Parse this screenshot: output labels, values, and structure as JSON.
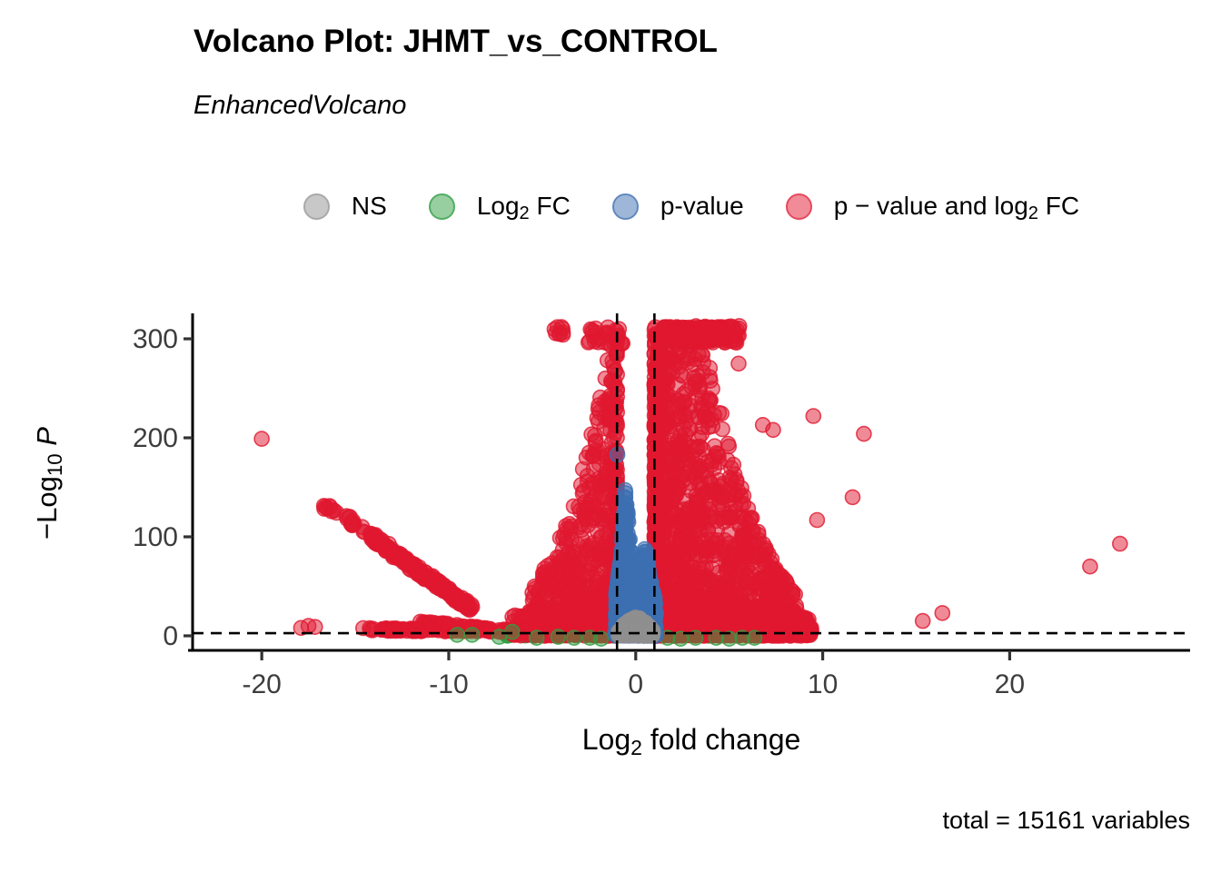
{
  "title": "Volcano Plot: JHMT_vs_CONTROL",
  "subtitle": "EnhancedVolcano",
  "caption": "total = 15161 variables",
  "legend": {
    "items": [
      {
        "key": "ns",
        "pre": "NS",
        "sub": "",
        "post": "",
        "fill": "#c8c8c8",
        "stroke": "#a9a9a9"
      },
      {
        "key": "log2fc",
        "pre": "Log",
        "sub": "2",
        "post": " FC",
        "fill": "#97cfa0",
        "stroke": "#51ae63"
      },
      {
        "key": "pvalue",
        "pre": "p-value",
        "sub": "",
        "post": "",
        "fill": "#9eb7d9",
        "stroke": "#6289bf"
      },
      {
        "key": "both",
        "pre": "p − value and log",
        "sub": "2",
        "post": " FC",
        "fill": "#f08b97",
        "stroke": "#e64a5d"
      }
    ]
  },
  "axes": {
    "y": {
      "pre": "−Log",
      "sub": "10",
      "post": " ",
      "italic_suffix": "P",
      "ticks": [
        0,
        100,
        200,
        300
      ]
    },
    "x": {
      "pre": "Log",
      "sub": "2",
      "post": " fold change",
      "ticks": [
        -20,
        -10,
        0,
        10,
        20
      ]
    }
  },
  "style": {
    "axis_color": "#000000",
    "tick_label_color": "#3d3d3d",
    "dash_color": "#000000"
  },
  "chart_data": {
    "type": "scatter",
    "title": "Volcano Plot: JHMT_vs_CONTROL",
    "subtitle": "EnhancedVolcano",
    "xlabel": "Log2 fold change",
    "ylabel": "-Log10 P",
    "xlim": [
      -23.7,
      29.65
    ],
    "ylim": [
      -14.7,
      325.7
    ],
    "x_ticks": [
      -20,
      -10,
      0,
      10,
      20
    ],
    "y_ticks": [
      0,
      100,
      200,
      300
    ],
    "grid": false,
    "legend_position": "top",
    "total_variables": 15161,
    "point_radius_px": 8,
    "fill_opacity": 0.5,
    "stroke_opacity": 0.8,
    "thresholds": {
      "log2fc_cutoffs": [
        -1,
        1
      ],
      "pvalue_cutoff_neglog10": 2.7
    },
    "colors": {
      "ns": "#8f8f8f",
      "log2fc": "#2f9e41",
      "pvalue": "#3c6fb2",
      "both": "#e0182f"
    },
    "clusters": [
      {
        "name": "green-base",
        "color": "log2fc",
        "type": "band",
        "n": 150,
        "x_range": [
          -7,
          6.5
        ],
        "y_range": [
          0,
          3
        ]
      },
      {
        "name": "red-right-wing",
        "color": "both",
        "type": "wedge",
        "n": 1500,
        "x_range": [
          1.0,
          8.6
        ],
        "x_power": 2.0,
        "envelope": [
          [
            1,
            312
          ],
          [
            3.3,
            310
          ],
          [
            4.2,
            265
          ],
          [
            5,
            190
          ],
          [
            5.8,
            140
          ],
          [
            6.6,
            105
          ],
          [
            7.5,
            68
          ],
          [
            8.6,
            42
          ]
        ],
        "y_power": 1.5
      },
      {
        "name": "red-right-bottom",
        "color": "both",
        "type": "wedge",
        "n": 650,
        "x_range": [
          1.0,
          9.4
        ],
        "x_power": 1.3,
        "envelope": [
          [
            1,
            45
          ],
          [
            5,
            35
          ],
          [
            8,
            25
          ],
          [
            9.4,
            16
          ]
        ],
        "y_power": 1.2
      },
      {
        "name": "red-left-wing",
        "color": "both",
        "type": "wedge",
        "n": 650,
        "x_range": [
          -5.6,
          -1.0
        ],
        "x_power": 2.0,
        "bias_end": true,
        "envelope": [
          [
            -5.6,
            50
          ],
          [
            -4.5,
            80
          ],
          [
            -3.5,
            125
          ],
          [
            -2.6,
            185
          ],
          [
            -1.8,
            250
          ],
          [
            -1.3,
            300
          ],
          [
            -1,
            312
          ]
        ],
        "y_power": 1.6
      },
      {
        "name": "red-left-bottom",
        "color": "both",
        "type": "wedge",
        "n": 300,
        "x_range": [
          -6.6,
          -1.0
        ],
        "x_power": 1.4,
        "bias_end": true,
        "envelope": [
          [
            -6.6,
            20
          ],
          [
            -4,
            35
          ],
          [
            -1,
            45
          ]
        ],
        "y_power": 1.2
      },
      {
        "name": "red-top-band",
        "color": "both",
        "type": "band",
        "n": 150,
        "x_range": [
          1.35,
          5.6
        ],
        "y_range": [
          296,
          313
        ],
        "x_power": 1.6
      },
      {
        "name": "red-top-core",
        "color": "both",
        "type": "band",
        "n": 140,
        "x_range": [
          1.9,
          4.6
        ],
        "y_range": [
          299,
          312
        ]
      },
      {
        "name": "red-top-left",
        "color": "both",
        "type": "band",
        "n": 26,
        "x_range": [
          -2.55,
          -0.7
        ],
        "y_range": [
          295,
          312
        ]
      },
      {
        "name": "red-top-left-mini",
        "color": "both",
        "type": "band",
        "n": 9,
        "x_range": [
          -4.35,
          -3.85
        ],
        "y_range": [
          300,
          312
        ]
      },
      {
        "name": "red-diag-streak",
        "color": "both",
        "type": "line",
        "n": 240,
        "from": [
          -14.2,
          101
        ],
        "to": [
          -8.75,
          27
        ],
        "jitter": [
          0.14,
          3.5
        ]
      },
      {
        "name": "red-diag-pre",
        "color": "both",
        "type": "line",
        "n": 26,
        "from": [
          -16.6,
          131
        ],
        "to": [
          -14.25,
          103
        ],
        "jitter": [
          0.18,
          4
        ]
      },
      {
        "name": "red-bottom-chain",
        "color": "both",
        "type": "line",
        "n": 110,
        "from": [
          -14.4,
          6.5
        ],
        "to": [
          -5.2,
          5
        ],
        "jitter": [
          0.3,
          1.4
        ]
      },
      {
        "name": "red-bottom-slope",
        "color": "both",
        "type": "line",
        "n": 55,
        "from": [
          -11.3,
          13
        ],
        "to": [
          -7.6,
          6
        ],
        "jitter": [
          0.25,
          1.5
        ]
      },
      {
        "name": "red-far-left",
        "color": "both",
        "type": "points",
        "pts": [
          [
            -20.0,
            199
          ],
          [
            -17.9,
            8
          ],
          [
            -17.5,
            10
          ],
          [
            -17.15,
            9
          ],
          [
            -14.05,
            7
          ],
          [
            -13.6,
            6
          ]
        ]
      },
      {
        "name": "red-right-outliers",
        "color": "both",
        "type": "points",
        "pts": [
          [
            5.5,
            275
          ],
          [
            6.8,
            213
          ],
          [
            7.35,
            208
          ],
          [
            9.5,
            222
          ],
          [
            12.2,
            204
          ],
          [
            11.6,
            140
          ],
          [
            9.7,
            117
          ],
          [
            15.35,
            15
          ],
          [
            16.4,
            23
          ],
          [
            24.3,
            70
          ],
          [
            25.9,
            93
          ]
        ]
      },
      {
        "name": "green-peeks",
        "color": "log2fc",
        "type": "points",
        "pts": [
          [
            -9.55,
            1
          ],
          [
            -8.75,
            1
          ],
          [
            -6.6,
            4
          ],
          [
            -7.3,
            -1
          ],
          [
            -5.3,
            -2
          ],
          [
            -4.15,
            -1
          ],
          [
            -3.3,
            -2
          ],
          [
            -2.45,
            -2
          ],
          [
            -1.85,
            -3
          ],
          [
            1.7,
            -2
          ],
          [
            2.4,
            -3
          ],
          [
            3.2,
            -2
          ],
          [
            4.3,
            -2
          ],
          [
            5.0,
            -3
          ],
          [
            5.7,
            -2
          ],
          [
            6.35,
            -2
          ]
        ]
      },
      {
        "name": "blue-left-peak",
        "color": "pvalue",
        "type": "wedge",
        "n": 430,
        "x_range": [
          -1.06,
          -0.05
        ],
        "envelope": [
          [
            -1.06,
            45
          ],
          [
            -0.8,
            80
          ],
          [
            -0.55,
            152
          ],
          [
            -0.3,
            95
          ],
          [
            -0.05,
            40
          ]
        ],
        "y_power": 1.25
      },
      {
        "name": "blue-right-peak",
        "color": "pvalue",
        "type": "wedge",
        "n": 330,
        "x_range": [
          -0.02,
          1.06
        ],
        "envelope": [
          [
            -0.02,
            40
          ],
          [
            0.3,
            78
          ],
          [
            0.5,
            96
          ],
          [
            0.75,
            62
          ],
          [
            1.06,
            35
          ]
        ],
        "y_power": 1.25
      },
      {
        "name": "blue-base",
        "color": "pvalue",
        "type": "band",
        "n": 260,
        "x_range": [
          -1.1,
          1.1
        ],
        "y_range": [
          0,
          26
        ]
      },
      {
        "name": "blue-outlier",
        "color": "pvalue",
        "type": "points",
        "pts": [
          [
            -0.98,
            183
          ]
        ]
      },
      {
        "name": "gray-blob",
        "color": "ns",
        "type": "wedge",
        "n": 300,
        "x_range": [
          -0.92,
          0.92
        ],
        "envelope": [
          [
            -0.92,
            5
          ],
          [
            -0.55,
            13
          ],
          [
            0,
            20
          ],
          [
            0.5,
            14
          ],
          [
            0.92,
            6
          ]
        ],
        "y_power": 1.0
      }
    ]
  }
}
